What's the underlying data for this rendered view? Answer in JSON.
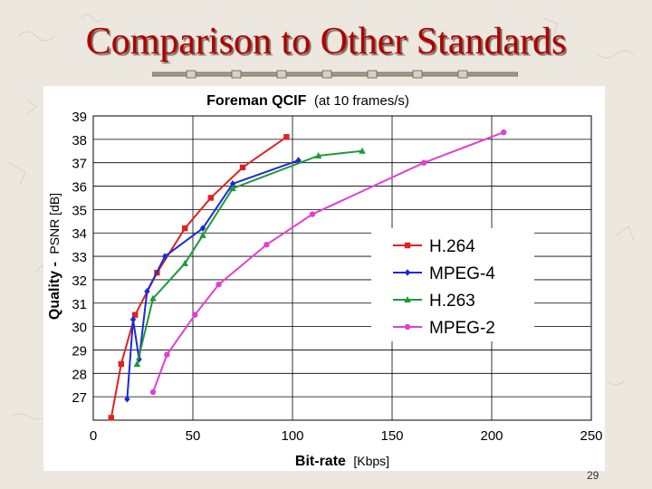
{
  "slide": {
    "title": "Comparison to Other Standards",
    "page_number": "29"
  },
  "colors": {
    "title": "#b00000",
    "background": "#ece8df"
  },
  "chart_data": {
    "type": "line",
    "title_bold": "Foreman QCIF",
    "title_rest": "(at 10 frames/s)",
    "xlabel_bold": "Bit-rate",
    "xlabel_unit": "[Kbps]",
    "ylabel_bold": "Quality -",
    "ylabel_unit": "PSNR [dB]",
    "xlim": [
      0,
      250
    ],
    "ylim": [
      26,
      39
    ],
    "xticks": [
      "0",
      "50",
      "100",
      "150",
      "200",
      "250"
    ],
    "yticks": [
      "27",
      "28",
      "29",
      "30",
      "31",
      "32",
      "33",
      "34",
      "35",
      "36",
      "37",
      "38",
      "39"
    ],
    "grid": true,
    "legend_position": "right-middle",
    "series": [
      {
        "name": "H.264",
        "color": "#e02020",
        "marker": "square",
        "points": [
          [
            9,
            26.1
          ],
          [
            14,
            28.4
          ],
          [
            21,
            30.5
          ],
          [
            32,
            32.3
          ],
          [
            46,
            34.2
          ],
          [
            59,
            35.5
          ],
          [
            75,
            36.8
          ],
          [
            97,
            38.1
          ]
        ]
      },
      {
        "name": "MPEG-4",
        "color": "#1a2ad8",
        "marker": "diamond",
        "points": [
          [
            17,
            26.9
          ],
          [
            20,
            30.3
          ],
          [
            23,
            28.6
          ],
          [
            27,
            31.5
          ],
          [
            36,
            33.0
          ],
          [
            55,
            34.2
          ],
          [
            70,
            36.1
          ],
          [
            103,
            37.1
          ]
        ]
      },
      {
        "name": "H.263",
        "color": "#1e9a3a",
        "marker": "triangle",
        "points": [
          [
            22,
            28.4
          ],
          [
            30,
            31.2
          ],
          [
            46,
            32.7
          ],
          [
            55,
            33.9
          ],
          [
            70,
            35.9
          ],
          [
            113,
            37.3
          ],
          [
            135,
            37.5
          ]
        ]
      },
      {
        "name": "MPEG-2",
        "color": "#e040d0",
        "marker": "circle",
        "points": [
          [
            30,
            27.2
          ],
          [
            37,
            28.8
          ],
          [
            51,
            30.5
          ],
          [
            63,
            31.8
          ],
          [
            87,
            33.5
          ],
          [
            110,
            34.8
          ],
          [
            166,
            37.0
          ],
          [
            206,
            38.3
          ]
        ]
      }
    ]
  }
}
